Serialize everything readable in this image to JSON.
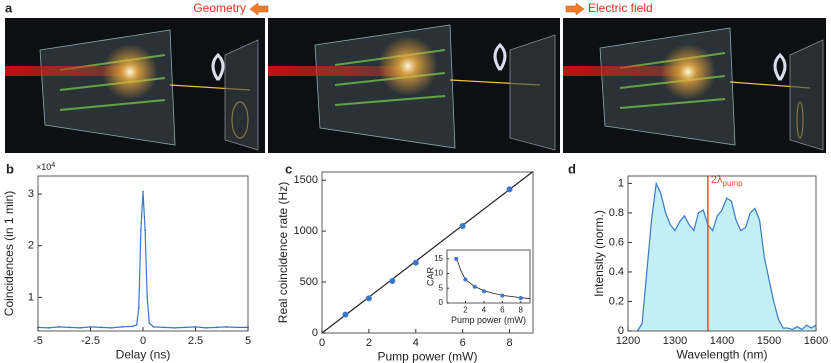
{
  "panel_a": {
    "label": "a",
    "left_arrow_text": "Geometry",
    "right_arrow_text": "Electric field"
  },
  "chart_data": [
    {
      "type": "line",
      "panel_label": "b",
      "x_label": "Delay (ns)",
      "y_label": "Coincidences (in 1 min)",
      "y_scale_label": {
        "base": "×10",
        "exponent": "4"
      },
      "x": [
        -5,
        -4.5,
        -4,
        -3.5,
        -3,
        -2.5,
        -2,
        -1.5,
        -1,
        -0.5,
        -0.3,
        -0.2,
        -0.1,
        0,
        0.1,
        0.2,
        0.3,
        0.5,
        1,
        1.5,
        2,
        2.5,
        3,
        3.5,
        4,
        4.5,
        5
      ],
      "values": [
        0.42,
        0.41,
        0.43,
        0.42,
        0.41,
        0.43,
        0.42,
        0.41,
        0.43,
        0.44,
        0.47,
        0.8,
        2.3,
        3.05,
        2.3,
        1.0,
        0.5,
        0.43,
        0.42,
        0.41,
        0.42,
        0.43,
        0.41,
        0.42,
        0.43,
        0.42,
        0.42
      ],
      "color": "#3a78c9",
      "xlim": [
        -5,
        5
      ],
      "ylim": [
        0.35,
        3.35
      ],
      "xticks": [
        -5,
        -2.5,
        0,
        2.5,
        5
      ],
      "yticks": [
        1,
        2,
        3
      ]
    },
    {
      "type": "scatter",
      "panel_label": "c",
      "x_label": "Pump power (mW)",
      "y_label": "Real coincidence rate (Hz)",
      "x": [
        1,
        2,
        3,
        4,
        6,
        8
      ],
      "values": [
        180,
        340,
        510,
        690,
        1050,
        1410
      ],
      "color": "#3a78c9",
      "fit": {
        "x": [
          0,
          9
        ],
        "y": [
          0,
          1585
        ]
      },
      "xlim": [
        0,
        9
      ],
      "ylim": [
        0,
        1580
      ],
      "xticks": [
        0,
        2,
        4,
        6,
        8
      ],
      "yticks": [
        0,
        500,
        1000,
        1500
      ]
    },
    {
      "type": "scatter",
      "x_label": "Pump power (mW)",
      "y_label": "CAR",
      "x": [
        1,
        2,
        3,
        4,
        6,
        8
      ],
      "values": [
        15,
        8,
        5.5,
        4,
        2.5,
        1.7
      ],
      "color": "#3a78c9",
      "fit": {
        "x": [
          1,
          1.5,
          2,
          3,
          4,
          5,
          6,
          7,
          8,
          9
        ],
        "y": [
          15.5,
          11,
          8,
          5.6,
          4.2,
          3.3,
          2.6,
          2.2,
          1.8,
          1.5
        ]
      },
      "xlim": [
        0,
        9
      ],
      "ylim": [
        0,
        18
      ],
      "xticks": [
        2,
        4,
        6,
        8
      ],
      "yticks": [
        0,
        5,
        10,
        15
      ]
    },
    {
      "type": "area",
      "panel_label": "d",
      "x_label": "Wavelength (nm)",
      "y_label": "Intensity (norm.)",
      "x": [
        1220,
        1230,
        1240,
        1250,
        1260,
        1270,
        1280,
        1290,
        1300,
        1310,
        1320,
        1330,
        1340,
        1350,
        1360,
        1370,
        1380,
        1390,
        1400,
        1410,
        1420,
        1430,
        1440,
        1450,
        1460,
        1470,
        1480,
        1490,
        1500,
        1510,
        1520,
        1530,
        1540,
        1550,
        1560,
        1570,
        1580,
        1590,
        1600
      ],
      "values": [
        0,
        0.05,
        0.4,
        0.75,
        1.0,
        0.93,
        0.8,
        0.72,
        0.68,
        0.74,
        0.78,
        0.72,
        0.68,
        0.8,
        0.82,
        0.72,
        0.68,
        0.78,
        0.82,
        0.9,
        0.88,
        0.75,
        0.68,
        0.7,
        0.8,
        0.83,
        0.75,
        0.5,
        0.35,
        0.2,
        0.08,
        0.02,
        0.02,
        0.01,
        0.03,
        0.01,
        0.04,
        0.02,
        0.04
      ],
      "color": "#3a78c9",
      "fill": "#c4eef6",
      "annotation": {
        "x": 1370,
        "text": "2λ",
        "subscript": "pump",
        "color": "#e0522a"
      },
      "xlim": [
        1200,
        1600
      ],
      "ylim": [
        0,
        1.05
      ],
      "xticks": [
        1200,
        1300,
        1400,
        1500,
        1600
      ],
      "yticks": [
        0,
        0.2,
        0.4,
        0.6,
        0.8,
        1
      ]
    }
  ]
}
